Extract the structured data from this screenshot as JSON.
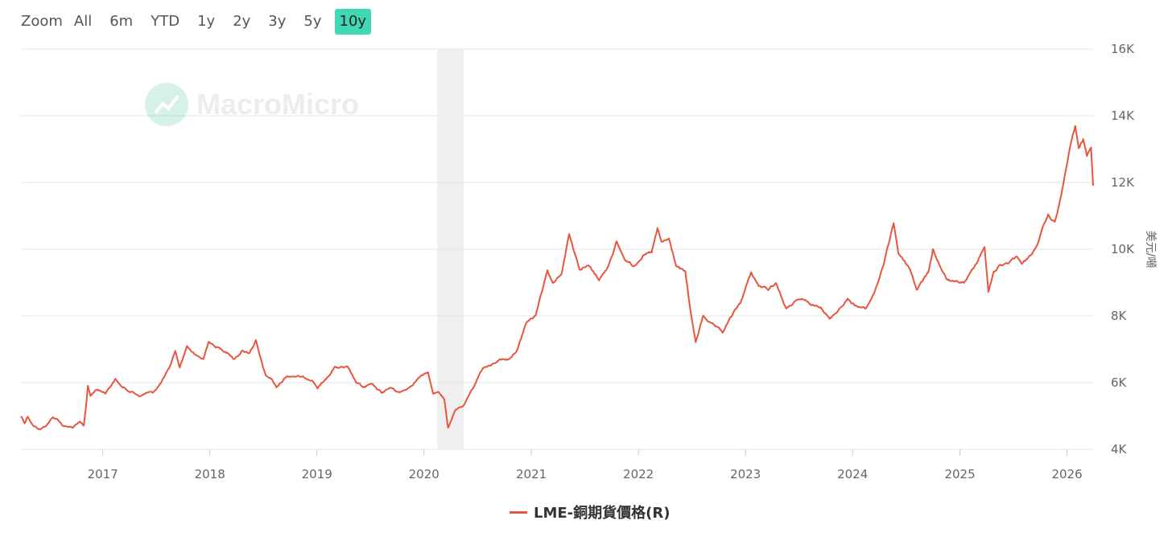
{
  "zoom": {
    "label": "Zoom",
    "buttons": [
      "All",
      "6m",
      "YTD",
      "1y",
      "2y",
      "3y",
      "5y",
      "10y"
    ],
    "active": "10y"
  },
  "watermark": {
    "text": "MacroMicro"
  },
  "legend": {
    "label": "LME-銅期貨價格(R)",
    "color": "#e8553e"
  },
  "colors": {
    "series": "#e8553e",
    "shade": "#efefef",
    "active_button": "#40d8b5"
  },
  "chart_data": {
    "type": "line",
    "ylabel": "美元/噸",
    "y_axis_position": "right",
    "ylim": [
      4000,
      16000
    ],
    "y_ticks": [
      4000,
      6000,
      8000,
      10000,
      12000,
      14000,
      16000
    ],
    "y_tick_labels": [
      "4K",
      "6K",
      "8K",
      "10K",
      "12K",
      "14K",
      "16K"
    ],
    "x_ticks": [
      "2017",
      "2018",
      "2019",
      "2020",
      "2021",
      "2022",
      "2023",
      "2024",
      "2025",
      "2026"
    ],
    "xlim": [
      "2016-03-28",
      "2026-03-31"
    ],
    "grid": true,
    "shaded_region": {
      "start": "2020-02-15",
      "end": "2020-05-15"
    },
    "series": [
      {
        "name": "LME-銅期貨價格(R)",
        "points": [
          [
            "2016-03-28",
            5000
          ],
          [
            "2016-04-10",
            4800
          ],
          [
            "2016-04-20",
            5000
          ],
          [
            "2016-05-10",
            4700
          ],
          [
            "2016-06-01",
            4600
          ],
          [
            "2016-06-20",
            4700
          ],
          [
            "2016-07-15",
            4950
          ],
          [
            "2016-08-01",
            4900
          ],
          [
            "2016-08-20",
            4700
          ],
          [
            "2016-09-20",
            4650
          ],
          [
            "2016-10-15",
            4800
          ],
          [
            "2016-10-28",
            4700
          ],
          [
            "2016-11-05",
            5300
          ],
          [
            "2016-11-11",
            5900
          ],
          [
            "2016-11-20",
            5600
          ],
          [
            "2016-12-10",
            5800
          ],
          [
            "2017-01-10",
            5700
          ],
          [
            "2017-02-13",
            6100
          ],
          [
            "2017-03-10",
            5850
          ],
          [
            "2017-04-15",
            5700
          ],
          [
            "2017-05-10",
            5600
          ],
          [
            "2017-06-01",
            5700
          ],
          [
            "2017-06-20",
            5700
          ],
          [
            "2017-07-15",
            5950
          ],
          [
            "2017-08-15",
            6400
          ],
          [
            "2017-09-05",
            6950
          ],
          [
            "2017-09-20",
            6450
          ],
          [
            "2017-10-15",
            7100
          ],
          [
            "2017-11-15",
            6800
          ],
          [
            "2017-12-10",
            6700
          ],
          [
            "2017-12-28",
            7250
          ],
          [
            "2018-01-15",
            7100
          ],
          [
            "2018-02-10",
            7000
          ],
          [
            "2018-03-05",
            6900
          ],
          [
            "2018-03-25",
            6700
          ],
          [
            "2018-04-20",
            6950
          ],
          [
            "2018-05-15",
            6900
          ],
          [
            "2018-06-07",
            7250
          ],
          [
            "2018-06-20",
            6800
          ],
          [
            "2018-07-10",
            6200
          ],
          [
            "2018-08-01",
            6100
          ],
          [
            "2018-08-16",
            5850
          ],
          [
            "2018-09-20",
            6200
          ],
          [
            "2018-10-15",
            6200
          ],
          [
            "2018-11-15",
            6150
          ],
          [
            "2018-12-15",
            6100
          ],
          [
            "2019-01-03",
            5850
          ],
          [
            "2019-02-01",
            6100
          ],
          [
            "2019-03-01",
            6450
          ],
          [
            "2019-04-15",
            6450
          ],
          [
            "2019-05-15",
            6000
          ],
          [
            "2019-06-10",
            5850
          ],
          [
            "2019-07-05",
            5950
          ],
          [
            "2019-08-10",
            5700
          ],
          [
            "2019-09-10",
            5850
          ],
          [
            "2019-10-10",
            5700
          ],
          [
            "2019-11-10",
            5850
          ],
          [
            "2019-12-15",
            6150
          ],
          [
            "2020-01-15",
            6300
          ],
          [
            "2020-02-01",
            5650
          ],
          [
            "2020-02-20",
            5750
          ],
          [
            "2020-03-10",
            5500
          ],
          [
            "2020-03-23",
            4650
          ],
          [
            "2020-04-15",
            5150
          ],
          [
            "2020-05-15",
            5300
          ],
          [
            "2020-06-15",
            5800
          ],
          [
            "2020-07-05",
            6200
          ],
          [
            "2020-07-20",
            6450
          ],
          [
            "2020-08-15",
            6500
          ],
          [
            "2020-09-15",
            6700
          ],
          [
            "2020-10-15",
            6700
          ],
          [
            "2020-11-15",
            7000
          ],
          [
            "2020-12-15",
            7800
          ],
          [
            "2021-01-15",
            8000
          ],
          [
            "2021-02-25",
            9400
          ],
          [
            "2021-03-15",
            9000
          ],
          [
            "2021-04-15",
            9300
          ],
          [
            "2021-05-10",
            10500
          ],
          [
            "2021-05-25",
            10000
          ],
          [
            "2021-06-15",
            9400
          ],
          [
            "2021-07-15",
            9500
          ],
          [
            "2021-08-20",
            9100
          ],
          [
            "2021-09-15",
            9400
          ],
          [
            "2021-10-18",
            10200
          ],
          [
            "2021-11-15",
            9700
          ],
          [
            "2021-12-15",
            9500
          ],
          [
            "2022-01-15",
            9800
          ],
          [
            "2022-02-15",
            9900
          ],
          [
            "2022-03-07",
            10600
          ],
          [
            "2022-03-20",
            10200
          ],
          [
            "2022-04-15",
            10300
          ],
          [
            "2022-05-10",
            9500
          ],
          [
            "2022-06-10",
            9300
          ],
          [
            "2022-06-25",
            8300
          ],
          [
            "2022-07-15",
            7200
          ],
          [
            "2022-08-10",
            8000
          ],
          [
            "2022-09-15",
            7700
          ],
          [
            "2022-10-15",
            7500
          ],
          [
            "2022-11-15",
            8000
          ],
          [
            "2022-12-15",
            8400
          ],
          [
            "2023-01-20",
            9300
          ],
          [
            "2023-02-15",
            8900
          ],
          [
            "2023-03-20",
            8800
          ],
          [
            "2023-04-15",
            9000
          ],
          [
            "2023-05-20",
            8200
          ],
          [
            "2023-06-15",
            8400
          ],
          [
            "2023-07-15",
            8500
          ],
          [
            "2023-08-15",
            8300
          ],
          [
            "2023-09-15",
            8300
          ],
          [
            "2023-10-15",
            7900
          ],
          [
            "2023-11-15",
            8200
          ],
          [
            "2023-12-15",
            8500
          ],
          [
            "2024-01-15",
            8300
          ],
          [
            "2024-02-15",
            8200
          ],
          [
            "2024-03-15",
            8700
          ],
          [
            "2024-04-15",
            9500
          ],
          [
            "2024-05-20",
            10800
          ],
          [
            "2024-06-05",
            9900
          ],
          [
            "2024-07-15",
            9400
          ],
          [
            "2024-08-07",
            8800
          ],
          [
            "2024-09-15",
            9300
          ],
          [
            "2024-10-01",
            10000
          ],
          [
            "2024-10-20",
            9600
          ],
          [
            "2024-11-15",
            9100
          ],
          [
            "2024-12-15",
            9000
          ],
          [
            "2025-01-15",
            9000
          ],
          [
            "2025-02-15",
            9400
          ],
          [
            "2025-03-26",
            10100
          ],
          [
            "2025-04-08",
            8700
          ],
          [
            "2025-04-25",
            9300
          ],
          [
            "2025-05-15",
            9500
          ],
          [
            "2025-06-15",
            9600
          ],
          [
            "2025-07-15",
            9800
          ],
          [
            "2025-07-31",
            9600
          ],
          [
            "2025-08-20",
            9700
          ],
          [
            "2025-09-15",
            10000
          ],
          [
            "2025-10-10",
            10600
          ],
          [
            "2025-10-29",
            11000
          ],
          [
            "2025-11-20",
            10800
          ],
          [
            "2025-12-10",
            11500
          ],
          [
            "2025-12-31",
            12500
          ],
          [
            "2026-01-15",
            13200
          ],
          [
            "2026-01-29",
            13700
          ],
          [
            "2026-02-10",
            13000
          ],
          [
            "2026-02-25",
            13300
          ],
          [
            "2026-03-10",
            12800
          ],
          [
            "2026-03-24",
            13100
          ],
          [
            "2026-03-31",
            11900
          ]
        ]
      }
    ]
  }
}
